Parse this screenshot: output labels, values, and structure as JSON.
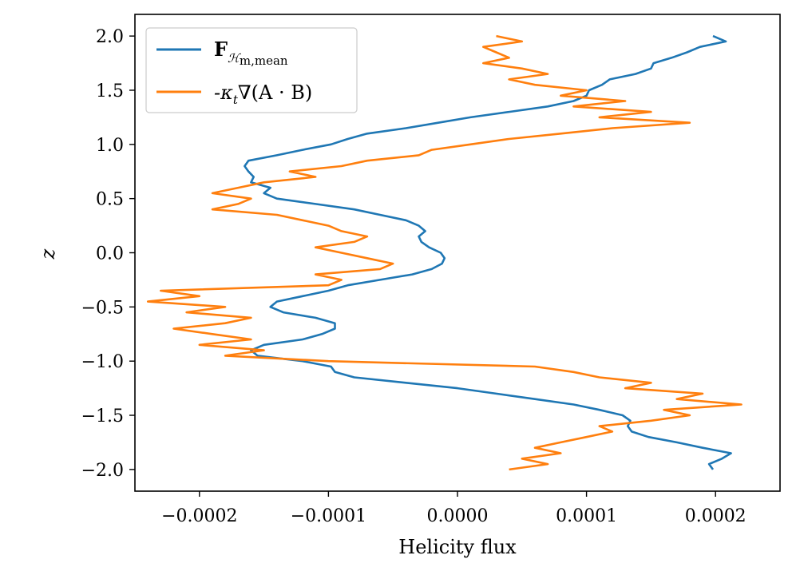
{
  "chart_data": {
    "type": "line",
    "title": "",
    "xlabel": "Helicity flux",
    "ylabel": "z",
    "xlim": [
      -0.00025,
      0.00025
    ],
    "ylim": [
      -2.2,
      2.2
    ],
    "grid": false,
    "legend_position": "top-left",
    "xticks": [
      -0.0002,
      -0.0001,
      0.0,
      0.0001,
      0.0002
    ],
    "xtick_labels": [
      "−0.0002",
      "−0.0001",
      "0.0000",
      "0.0001",
      "0.0002"
    ],
    "yticks": [
      -2.0,
      -1.5,
      -1.0,
      -0.5,
      0.0,
      0.5,
      1.0,
      1.5,
      2.0
    ],
    "ytick_labels": [
      "−2.0",
      "−1.5",
      "−1.0",
      "−0.5",
      "0.0",
      "0.5",
      "1.0",
      "1.5",
      "2.0"
    ],
    "series": [
      {
        "name": "F_{H_m,mean}",
        "legend_main": "F",
        "legend_sub": "ℋ",
        "legend_sub2": "m,mean",
        "color": "#1f77b4",
        "z": [
          -2.0,
          -1.95,
          -1.9,
          -1.85,
          -1.8,
          -1.75,
          -1.7,
          -1.65,
          -1.6,
          -1.55,
          -1.5,
          -1.45,
          -1.4,
          -1.35,
          -1.3,
          -1.25,
          -1.2,
          -1.15,
          -1.1,
          -1.05,
          -1.0,
          -0.95,
          -0.9,
          -0.85,
          -0.8,
          -0.75,
          -0.7,
          -0.65,
          -0.6,
          -0.55,
          -0.5,
          -0.45,
          -0.4,
          -0.35,
          -0.3,
          -0.25,
          -0.2,
          -0.15,
          -0.1,
          -0.05,
          0.0,
          0.05,
          0.1,
          0.15,
          0.2,
          0.25,
          0.3,
          0.35,
          0.4,
          0.45,
          0.5,
          0.55,
          0.6,
          0.65,
          0.7,
          0.75,
          0.8,
          0.85,
          0.9,
          0.95,
          1.0,
          1.05,
          1.1,
          1.15,
          1.2,
          1.25,
          1.3,
          1.35,
          1.4,
          1.45,
          1.5,
          1.55,
          1.6,
          1.65,
          1.7,
          1.75,
          1.8,
          1.85,
          1.9,
          1.95,
          2.0
        ],
        "x": [
          0.000198,
          0.000195,
          0.000205,
          0.000212,
          0.00019,
          0.00017,
          0.000148,
          0.000135,
          0.000132,
          0.000134,
          0.000128,
          0.00011,
          9e-05,
          6e-05,
          3e-05,
          0.0,
          -4e-05,
          -8e-05,
          -9.5e-05,
          -9.8e-05,
          -0.00012,
          -0.000155,
          -0.00016,
          -0.00015,
          -0.00012,
          -0.000105,
          -9.5e-05,
          -9.5e-05,
          -0.00011,
          -0.000135,
          -0.000145,
          -0.00014,
          -0.00012,
          -0.0001,
          -8.5e-05,
          -6e-05,
          -3.5e-05,
          -2e-05,
          -1.2e-05,
          -1e-05,
          -1.3e-05,
          -2.2e-05,
          -2.8e-05,
          -3e-05,
          -2.5e-05,
          -3e-05,
          -4e-05,
          -6e-05,
          -8e-05,
          -0.00011,
          -0.00014,
          -0.00015,
          -0.000145,
          -0.00016,
          -0.000158,
          -0.000162,
          -0.000165,
          -0.000162,
          -0.00014,
          -0.00012,
          -9.8e-05,
          -8.5e-05,
          -7e-05,
          -4e-05,
          -1.5e-05,
          1e-05,
          4e-05,
          7e-05,
          9e-05,
          0.0001,
          0.000102,
          0.000112,
          0.000118,
          0.000138,
          0.00015,
          0.000152,
          0.000166,
          0.000178,
          0.000188,
          0.000208,
          0.000198
        ]
      },
      {
        "name": "-kappa_t nabla(A.B)",
        "legend_main": "-κ",
        "legend_sub": "t",
        "legend_rest": "∇(A · B)",
        "color": "#ff7f0e",
        "z": [
          -2.0,
          -1.95,
          -1.9,
          -1.85,
          -1.8,
          -1.75,
          -1.7,
          -1.65,
          -1.6,
          -1.55,
          -1.5,
          -1.45,
          -1.4,
          -1.35,
          -1.3,
          -1.25,
          -1.2,
          -1.15,
          -1.1,
          -1.05,
          -1.0,
          -0.95,
          -0.9,
          -0.85,
          -0.8,
          -0.75,
          -0.7,
          -0.65,
          -0.6,
          -0.55,
          -0.5,
          -0.45,
          -0.4,
          -0.35,
          -0.3,
          -0.25,
          -0.2,
          -0.15,
          -0.1,
          -0.05,
          0.0,
          0.05,
          0.1,
          0.15,
          0.2,
          0.25,
          0.3,
          0.35,
          0.4,
          0.45,
          0.5,
          0.55,
          0.6,
          0.65,
          0.7,
          0.75,
          0.8,
          0.85,
          0.9,
          0.95,
          1.0,
          1.05,
          1.1,
          1.15,
          1.2,
          1.25,
          1.3,
          1.35,
          1.4,
          1.45,
          1.5,
          1.55,
          1.6,
          1.65,
          1.7,
          1.75,
          1.8,
          1.85,
          1.9,
          1.95,
          2.0
        ],
        "x": [
          4e-05,
          7e-05,
          5e-05,
          8e-05,
          6e-05,
          8e-05,
          0.0001,
          0.00012,
          0.00011,
          0.00015,
          0.00018,
          0.00016,
          0.00022,
          0.00017,
          0.00019,
          0.00013,
          0.00015,
          0.00011,
          9e-05,
          6e-05,
          -0.0001,
          -0.00018,
          -0.00015,
          -0.0002,
          -0.00016,
          -0.00019,
          -0.00022,
          -0.00018,
          -0.00016,
          -0.00021,
          -0.00018,
          -0.00024,
          -0.0002,
          -0.00023,
          -0.0001,
          -9e-05,
          -0.00011,
          -6e-05,
          -5e-05,
          -7e-05,
          -9e-05,
          -0.00011,
          -8e-05,
          -7e-05,
          -9e-05,
          -0.0001,
          -0.00012,
          -0.00014,
          -0.00019,
          -0.00017,
          -0.00016,
          -0.00019,
          -0.00017,
          -0.00015,
          -0.00011,
          -0.00013,
          -9e-05,
          -7e-05,
          -3e-05,
          -2e-05,
          1e-05,
          4e-05,
          8e-05,
          0.00012,
          0.00018,
          0.00011,
          0.00015,
          9e-05,
          0.00013,
          8e-05,
          0.0001,
          6e-05,
          4e-05,
          7e-05,
          5e-05,
          2e-05,
          4e-05,
          3e-05,
          2e-05,
          5e-05,
          3e-05
        ]
      }
    ]
  }
}
